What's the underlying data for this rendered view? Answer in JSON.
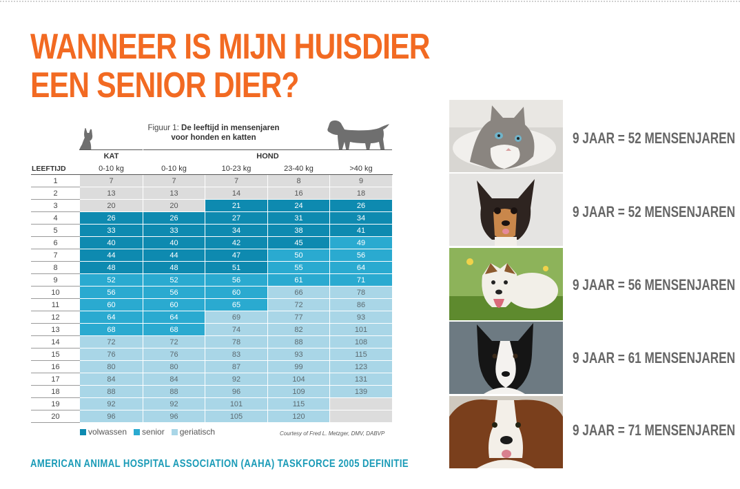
{
  "title": {
    "line1": "WANNEER IS MIJN HUISDIER",
    "line2": "EEN SENIOR DIER?"
  },
  "figure": {
    "prefix": "Figuur 1: ",
    "bold_line1": "De leeftijd in mensenjaren",
    "bold_line2": "voor honden en katten"
  },
  "table": {
    "group_headers": {
      "cat": "KAT",
      "dog": "HOND"
    },
    "age_header": "LEEFTIJD",
    "columns": [
      "0-10 kg",
      "0-10 kg",
      "10-23 kg",
      "23-40 kg",
      ">40 kg"
    ],
    "rows": [
      {
        "age": "1",
        "cells": [
          [
            "7",
            "n"
          ],
          [
            "7",
            "n"
          ],
          [
            "7",
            "n"
          ],
          [
            "8",
            "n"
          ],
          [
            "9",
            "n"
          ]
        ]
      },
      {
        "age": "2",
        "cells": [
          [
            "13",
            "n"
          ],
          [
            "13",
            "n"
          ],
          [
            "14",
            "n"
          ],
          [
            "16",
            "n"
          ],
          [
            "18",
            "n"
          ]
        ]
      },
      {
        "age": "3",
        "cells": [
          [
            "20",
            "n"
          ],
          [
            "20",
            "n"
          ],
          [
            "21",
            "a"
          ],
          [
            "24",
            "a"
          ],
          [
            "26",
            "a"
          ]
        ]
      },
      {
        "age": "4",
        "cells": [
          [
            "26",
            "a"
          ],
          [
            "26",
            "a"
          ],
          [
            "27",
            "a"
          ],
          [
            "31",
            "a"
          ],
          [
            "34",
            "a"
          ]
        ]
      },
      {
        "age": "5",
        "cells": [
          [
            "33",
            "a"
          ],
          [
            "33",
            "a"
          ],
          [
            "34",
            "a"
          ],
          [
            "38",
            "a"
          ],
          [
            "41",
            "a"
          ]
        ]
      },
      {
        "age": "6",
        "cells": [
          [
            "40",
            "a"
          ],
          [
            "40",
            "a"
          ],
          [
            "42",
            "a"
          ],
          [
            "45",
            "a"
          ],
          [
            "49",
            "s"
          ]
        ]
      },
      {
        "age": "7",
        "cells": [
          [
            "44",
            "a"
          ],
          [
            "44",
            "a"
          ],
          [
            "47",
            "a"
          ],
          [
            "50",
            "s"
          ],
          [
            "56",
            "s"
          ]
        ]
      },
      {
        "age": "8",
        "cells": [
          [
            "48",
            "a"
          ],
          [
            "48",
            "a"
          ],
          [
            "51",
            "a"
          ],
          [
            "55",
            "s"
          ],
          [
            "64",
            "s"
          ]
        ]
      },
      {
        "age": "9",
        "cells": [
          [
            "52",
            "s"
          ],
          [
            "52",
            "s"
          ],
          [
            "56",
            "s"
          ],
          [
            "61",
            "s"
          ],
          [
            "71",
            "s"
          ]
        ]
      },
      {
        "age": "10",
        "cells": [
          [
            "56",
            "s"
          ],
          [
            "56",
            "s"
          ],
          [
            "60",
            "s"
          ],
          [
            "66",
            "g"
          ],
          [
            "78",
            "g"
          ]
        ]
      },
      {
        "age": "11",
        "cells": [
          [
            "60",
            "s"
          ],
          [
            "60",
            "s"
          ],
          [
            "65",
            "s"
          ],
          [
            "72",
            "g"
          ],
          [
            "86",
            "g"
          ]
        ]
      },
      {
        "age": "12",
        "cells": [
          [
            "64",
            "s"
          ],
          [
            "64",
            "s"
          ],
          [
            "69",
            "g"
          ],
          [
            "77",
            "g"
          ],
          [
            "93",
            "g"
          ]
        ]
      },
      {
        "age": "13",
        "cells": [
          [
            "68",
            "s"
          ],
          [
            "68",
            "s"
          ],
          [
            "74",
            "g"
          ],
          [
            "82",
            "g"
          ],
          [
            "101",
            "g"
          ]
        ]
      },
      {
        "age": "14",
        "cells": [
          [
            "72",
            "g"
          ],
          [
            "72",
            "g"
          ],
          [
            "78",
            "g"
          ],
          [
            "88",
            "g"
          ],
          [
            "108",
            "g"
          ]
        ]
      },
      {
        "age": "15",
        "cells": [
          [
            "76",
            "g"
          ],
          [
            "76",
            "g"
          ],
          [
            "83",
            "g"
          ],
          [
            "93",
            "g"
          ],
          [
            "115",
            "g"
          ]
        ]
      },
      {
        "age": "16",
        "cells": [
          [
            "80",
            "g"
          ],
          [
            "80",
            "g"
          ],
          [
            "87",
            "g"
          ],
          [
            "99",
            "g"
          ],
          [
            "123",
            "g"
          ]
        ]
      },
      {
        "age": "17",
        "cells": [
          [
            "84",
            "g"
          ],
          [
            "84",
            "g"
          ],
          [
            "92",
            "g"
          ],
          [
            "104",
            "g"
          ],
          [
            "131",
            "g"
          ]
        ]
      },
      {
        "age": "18",
        "cells": [
          [
            "88",
            "g"
          ],
          [
            "88",
            "g"
          ],
          [
            "96",
            "g"
          ],
          [
            "109",
            "g"
          ],
          [
            "139",
            "g"
          ]
        ]
      },
      {
        "age": "19",
        "cells": [
          [
            "92",
            "g"
          ],
          [
            "92",
            "g"
          ],
          [
            "101",
            "g"
          ],
          [
            "115",
            "g"
          ],
          [
            "",
            "e"
          ]
        ]
      },
      {
        "age": "20",
        "cells": [
          [
            "96",
            "g"
          ],
          [
            "96",
            "g"
          ],
          [
            "105",
            "g"
          ],
          [
            "120",
            "g"
          ],
          [
            "",
            "e"
          ]
        ]
      }
    ]
  },
  "legend": [
    {
      "label": "volwassen",
      "color": "#0e8ab0"
    },
    {
      "label": "senior",
      "color": "#2aaad0"
    },
    {
      "label": "geriatisch",
      "color": "#a9d6e7"
    }
  ],
  "courtesy": "Courtesy of Fred L. Metzger, DMV, DABVP",
  "source": "AMERICAN ANIMAL HOSPITAL ASSOCIATION (AAHA) TASKFORCE 2005 DEFINITIE",
  "photos": [
    {
      "subject": "kitten",
      "caption": "9 JAAR = 52 MENSENJAREN"
    },
    {
      "subject": "chihuahua",
      "caption": "9 JAAR = 52 MENSENJAREN"
    },
    {
      "subject": "jack-russell",
      "caption": "9 JAAR = 56 MENSENJAREN"
    },
    {
      "subject": "border-collie",
      "caption": "9 JAAR = 61 MENSENJAREN"
    },
    {
      "subject": "saint-bernard",
      "caption": "9 JAAR = 71 MENSENJAREN"
    }
  ],
  "colors": {
    "title": "#f26a22",
    "source": "#1a9bb7",
    "adult": "#0e8ab0",
    "senior": "#2aaad0",
    "geriatric": "#a9d6e7",
    "normal": "#dcdcdc"
  }
}
